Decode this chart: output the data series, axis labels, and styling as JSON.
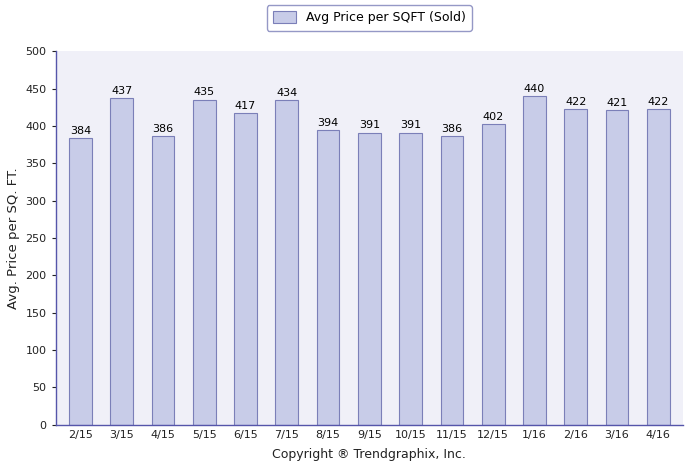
{
  "categories": [
    "2/15",
    "3/15",
    "4/15",
    "5/15",
    "6/15",
    "7/15",
    "8/15",
    "9/15",
    "10/15",
    "11/15",
    "12/15",
    "1/16",
    "2/16",
    "3/16",
    "4/16"
  ],
  "values": [
    384,
    437,
    386,
    435,
    417,
    434,
    394,
    391,
    391,
    386,
    402,
    440,
    422,
    421,
    422
  ],
  "bar_color": "#c8cce8",
  "bar_edgecolor": "#7b7fb8",
  "ylabel": "Avg. Price per SQ. FT.",
  "xlabel": "Copyright ® Trendgraphix, Inc.",
  "ylim": [
    0,
    500
  ],
  "yticks": [
    0,
    50,
    100,
    150,
    200,
    250,
    300,
    350,
    400,
    450,
    500
  ],
  "legend_label": "Avg Price per SQFT (Sold)",
  "legend_facecolor": "#c8cce8",
  "legend_edgecolor": "#7b7fb8",
  "label_fontsize": 8,
  "ylabel_fontsize": 9.5,
  "xlabel_fontsize": 9,
  "tick_fontsize": 8,
  "plot_bg_color": "#f0f0f8",
  "background_color": "#ffffff",
  "spine_color": "#5555aa",
  "tick_color": "#5555aa"
}
